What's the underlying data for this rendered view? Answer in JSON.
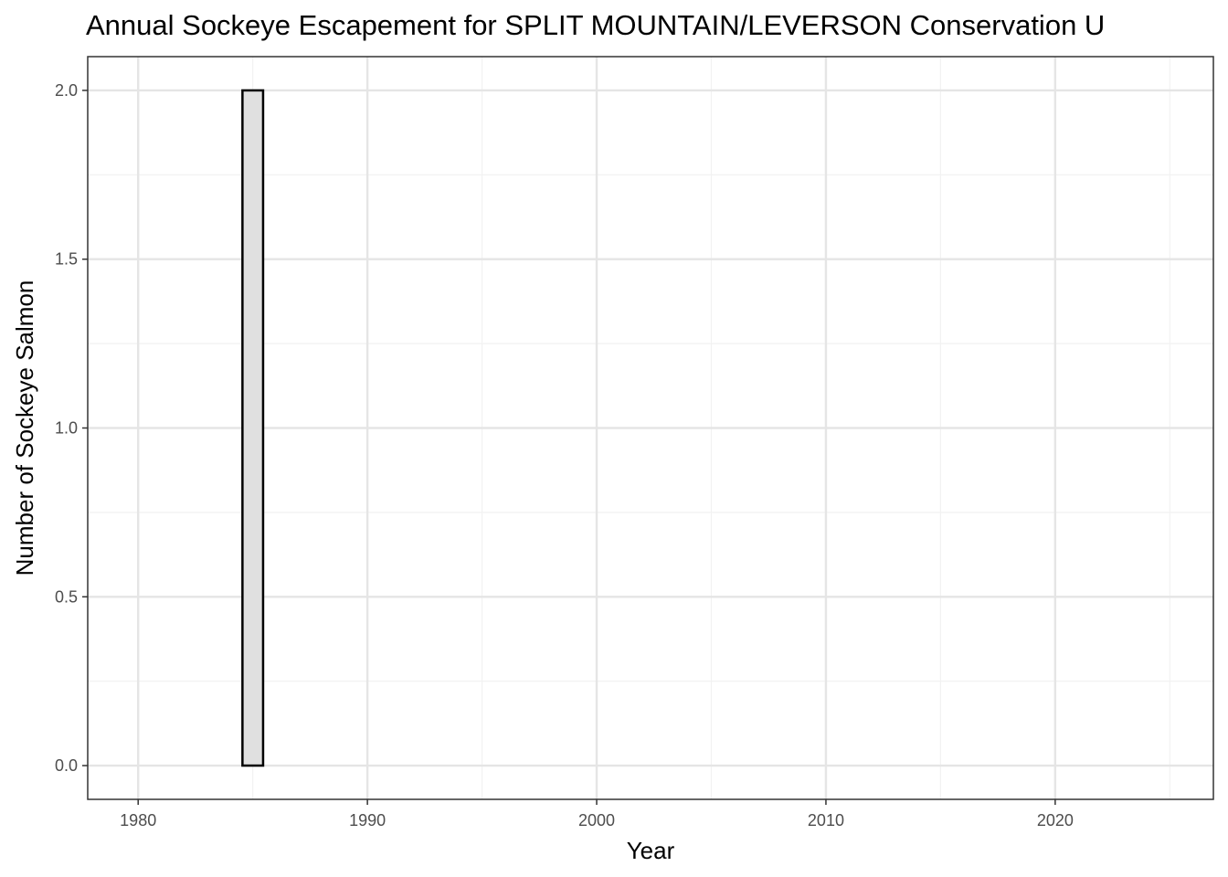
{
  "chart_data": {
    "type": "bar",
    "title": "Annual Sockeye Escapement for SPLIT MOUNTAIN/LEVERSON Conservation U",
    "xlabel": "Year",
    "ylabel": "Number of Sockeye Salmon",
    "x": [
      1985
    ],
    "values": [
      2
    ],
    "xlim": [
      1977.8,
      2026.9
    ],
    "ylim": [
      -0.1,
      2.1
    ],
    "x_ticks": [
      1980,
      1990,
      2000,
      2010,
      2020
    ],
    "x_tick_labels": [
      "1980",
      "1990",
      "2000",
      "2010",
      "2020"
    ],
    "y_ticks": [
      0.0,
      0.5,
      1.0,
      1.5,
      2.0
    ],
    "y_tick_labels": [
      "0.0",
      "0.5",
      "1.0",
      "1.5",
      "2.0"
    ],
    "grid": true,
    "legend": "none",
    "colors": {
      "bar_fill": "#e0e0e0",
      "bar_stroke": "#000000",
      "grid_major": "#e5e5e5",
      "grid_minor": "#f2f2f2",
      "panel_border": "#333333"
    }
  }
}
